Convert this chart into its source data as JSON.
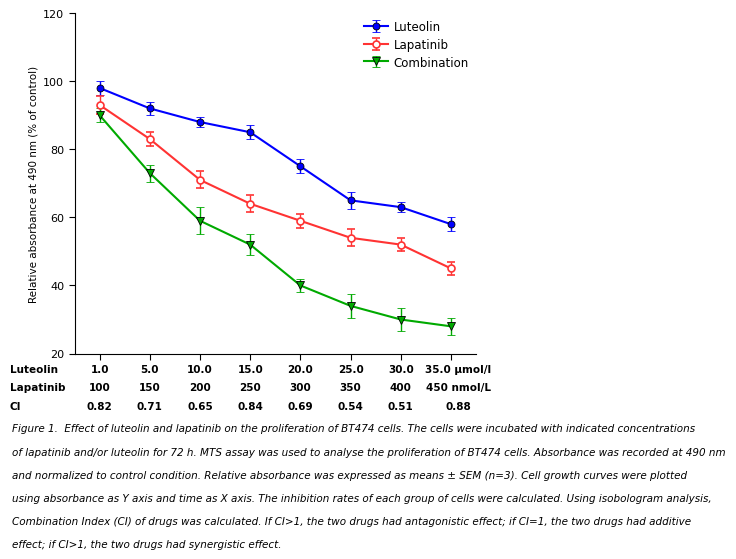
{
  "x_positions": [
    1,
    2,
    3,
    4,
    5,
    6,
    7,
    8
  ],
  "luteolin_vals": [
    "1.0",
    "5.0",
    "10.0",
    "15.0",
    "20.0",
    "25.0",
    "30.0",
    "35.0 μmol/l"
  ],
  "lapatinib_vals": [
    "100",
    "150",
    "200",
    "250",
    "300",
    "350",
    "400",
    "450 nmol/L"
  ],
  "CI_vals": [
    "0.82",
    "0.71",
    "0.65",
    "0.84",
    "0.69",
    "0.54",
    "0.51",
    "0.88"
  ],
  "luteolin_y": [
    98,
    92,
    88,
    85,
    75,
    65,
    63,
    58
  ],
  "luteolin_err": [
    2.0,
    1.8,
    1.5,
    2.0,
    2.0,
    2.5,
    1.5,
    2.0
  ],
  "lapatinib_y": [
    93,
    83,
    71,
    64,
    59,
    54,
    52,
    45
  ],
  "lapatinib_err": [
    2.5,
    2.0,
    2.5,
    2.5,
    2.0,
    2.5,
    2.0,
    2.0
  ],
  "combination_y": [
    90,
    73,
    59,
    52,
    40,
    34,
    30,
    28
  ],
  "combination_err": [
    2.0,
    2.5,
    4.0,
    3.0,
    2.0,
    3.5,
    3.5,
    2.5
  ],
  "luteolin_color": "#0000FF",
  "lapatinib_color": "#FF3333",
  "combination_color": "#00AA00",
  "ylabel": "Relative absorbance at 490 nm (% of control)",
  "ylim": [
    20,
    120
  ],
  "yticks": [
    20,
    40,
    60,
    80,
    100,
    120
  ],
  "caption_lines": [
    "Figure 1.  Effect of luteolin and lapatinib on the proliferation of BT474 cells. The cells were incubated with indicated concentrations",
    "of lapatinib and/or luteolin for 72 h. MTS assay was used to analyse the proliferation of BT474 cells. Absorbance was recorded at 490 nm",
    "and normalized to control condition. Relative absorbance was expressed as means ± SEM (n=3). Cell growth curves were plotted",
    "using absorbance as Y axis and time as X axis. The inhibition rates of each group of cells were calculated. Using isobologram analysis,",
    "Combination Index (CI) of drugs was calculated. If CI>1, the two drugs had antagonistic effect; if CI=1, the two drugs had additive",
    "effect; if CI>1, the two drugs had synergistic effect."
  ]
}
